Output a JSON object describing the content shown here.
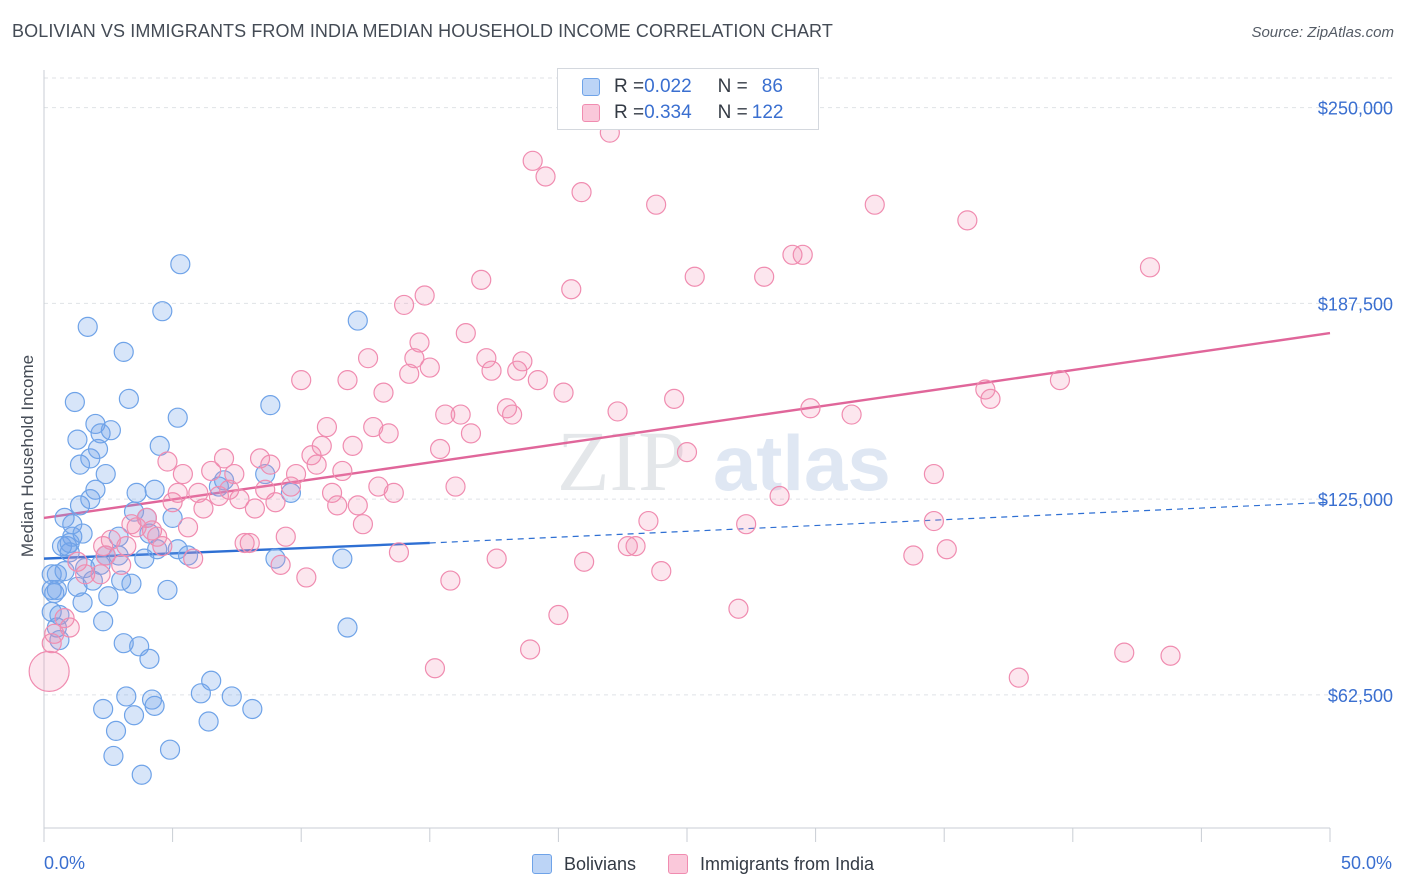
{
  "header": {
    "title": "BOLIVIAN VS IMMIGRANTS FROM INDIA MEDIAN HOUSEHOLD INCOME CORRELATION CHART",
    "source": "Source: ZipAtlas.com"
  },
  "watermark": {
    "zip": "ZIP",
    "atlas": "atlas"
  },
  "stats": {
    "rows": [
      {
        "r_label": "R = ",
        "r_value": "0.022",
        "n_label": "N = ",
        "n_value": "86",
        "color": "#6fa3e8"
      },
      {
        "r_label": "R = ",
        "r_value": "0.334",
        "n_label": "N = ",
        "n_value": "122",
        "color": "#f08cb0"
      }
    ]
  },
  "legend": {
    "items": [
      {
        "label": "Bolivians",
        "color": "#6fa3e8"
      },
      {
        "label": "Immigrants from India",
        "color": "#f08cb0"
      }
    ]
  },
  "chart_data": {
    "type": "scatter",
    "title": "BOLIVIAN VS IMMIGRANTS FROM INDIA MEDIAN HOUSEHOLD INCOME CORRELATION CHART",
    "xlabel": "",
    "ylabel": "Median Household Income",
    "x_unit": "%",
    "xlim": [
      0,
      50
    ],
    "ylim": [
      20000,
      262000
    ],
    "x_tick_labels": [
      "0.0%",
      "50.0%"
    ],
    "y_ticks": [
      62500,
      125000,
      187500,
      250000
    ],
    "y_tick_labels": [
      "$62,500",
      "$125,000",
      "$187,500",
      "$250,000"
    ],
    "grid": "horizontal dashed",
    "legend_position": "bottom",
    "series": [
      {
        "name": "Bolivians",
        "color": "#6fa3e8",
        "trend": {
          "x0": 0,
          "y0": 106000,
          "x1": 15,
          "y1": 111000,
          "extend_to": 50,
          "extend_y": 124000
        },
        "points": [
          [
            0.3,
            101000
          ],
          [
            0.3,
            96000
          ],
          [
            0.3,
            89000
          ],
          [
            0.4,
            95000
          ],
          [
            0.5,
            101000
          ],
          [
            0.5,
            96000
          ],
          [
            0.5,
            84000
          ],
          [
            0.6,
            80000
          ],
          [
            0.7,
            110000
          ],
          [
            0.8,
            102000
          ],
          [
            0.8,
            119000
          ],
          [
            0.9,
            110000
          ],
          [
            1.0,
            108000
          ],
          [
            1.1,
            113000
          ],
          [
            1.1,
            117000
          ],
          [
            1.2,
            156000
          ],
          [
            1.3,
            144000
          ],
          [
            1.4,
            123000
          ],
          [
            1.4,
            136000
          ],
          [
            1.5,
            114000
          ],
          [
            1.5,
            92000
          ],
          [
            1.6,
            103000
          ],
          [
            1.7,
            180000
          ],
          [
            1.8,
            138000
          ],
          [
            1.8,
            125000
          ],
          [
            1.9,
            99000
          ],
          [
            2.0,
            128000
          ],
          [
            2.0,
            149000
          ],
          [
            2.1,
            141000
          ],
          [
            2.2,
            146000
          ],
          [
            2.3,
            58000
          ],
          [
            2.3,
            86000
          ],
          [
            2.4,
            133000
          ],
          [
            2.4,
            107000
          ],
          [
            2.5,
            94000
          ],
          [
            2.6,
            147000
          ],
          [
            2.7,
            43000
          ],
          [
            2.8,
            51000
          ],
          [
            2.9,
            113000
          ],
          [
            2.9,
            107000
          ],
          [
            3.0,
            99000
          ],
          [
            3.1,
            172000
          ],
          [
            3.1,
            79000
          ],
          [
            3.2,
            62000
          ],
          [
            3.3,
            157000
          ],
          [
            3.4,
            98000
          ],
          [
            3.5,
            121000
          ],
          [
            3.5,
            56000
          ],
          [
            3.7,
            78000
          ],
          [
            3.8,
            37000
          ],
          [
            3.9,
            106000
          ],
          [
            4.0,
            119000
          ],
          [
            4.1,
            114000
          ],
          [
            4.1,
            74000
          ],
          [
            4.2,
            61000
          ],
          [
            4.3,
            59000
          ],
          [
            4.3,
            128000
          ],
          [
            4.4,
            109000
          ],
          [
            4.5,
            142000
          ],
          [
            4.6,
            185000
          ],
          [
            4.8,
            96000
          ],
          [
            4.9,
            45000
          ],
          [
            5.2,
            151000
          ],
          [
            5.2,
            109000
          ],
          [
            5.3,
            200000
          ],
          [
            5.6,
            107000
          ],
          [
            6.1,
            63000
          ],
          [
            6.4,
            54000
          ],
          [
            6.5,
            67000
          ],
          [
            6.8,
            129000
          ],
          [
            7.0,
            131000
          ],
          [
            7.3,
            62000
          ],
          [
            8.1,
            58000
          ],
          [
            8.6,
            133000
          ],
          [
            8.8,
            155000
          ],
          [
            9.0,
            106000
          ],
          [
            9.6,
            127000
          ],
          [
            11.6,
            106000
          ],
          [
            11.8,
            84000
          ],
          [
            12.2,
            182000
          ],
          [
            0.6,
            88000
          ],
          [
            1.0,
            111000
          ],
          [
            1.3,
            97000
          ],
          [
            2.2,
            104000
          ],
          [
            3.6,
            127000
          ],
          [
            5.0,
            119000
          ]
        ]
      },
      {
        "name": "Immigrants from India",
        "color": "#f08cb0",
        "trend": {
          "x0": 0,
          "y0": 119000,
          "x1": 50,
          "y1": 178000
        },
        "points": [
          [
            0.2,
            70000
          ],
          [
            0.3,
            79000
          ],
          [
            0.4,
            82000
          ],
          [
            0.8,
            87000
          ],
          [
            1.0,
            84000
          ],
          [
            1.3,
            105000
          ],
          [
            1.6,
            101000
          ],
          [
            2.2,
            101000
          ],
          [
            2.3,
            110000
          ],
          [
            2.4,
            107000
          ],
          [
            2.6,
            112000
          ],
          [
            3.0,
            104000
          ],
          [
            3.2,
            110000
          ],
          [
            3.4,
            117000
          ],
          [
            3.6,
            116000
          ],
          [
            4.0,
            119000
          ],
          [
            4.2,
            115000
          ],
          [
            4.4,
            113000
          ],
          [
            4.6,
            110000
          ],
          [
            4.8,
            137000
          ],
          [
            5.0,
            124000
          ],
          [
            5.2,
            127000
          ],
          [
            5.4,
            133000
          ],
          [
            5.6,
            116000
          ],
          [
            5.8,
            106000
          ],
          [
            6.0,
            127000
          ],
          [
            6.2,
            122000
          ],
          [
            6.5,
            134000
          ],
          [
            6.8,
            126000
          ],
          [
            7.0,
            138000
          ],
          [
            7.2,
            128000
          ],
          [
            7.4,
            133000
          ],
          [
            7.6,
            125000
          ],
          [
            7.8,
            111000
          ],
          [
            8.0,
            111000
          ],
          [
            8.2,
            122000
          ],
          [
            8.4,
            138000
          ],
          [
            8.6,
            128000
          ],
          [
            8.8,
            136000
          ],
          [
            9.0,
            124000
          ],
          [
            9.2,
            104000
          ],
          [
            9.4,
            113000
          ],
          [
            9.6,
            129000
          ],
          [
            9.8,
            133000
          ],
          [
            10.0,
            163000
          ],
          [
            10.2,
            100000
          ],
          [
            10.4,
            139000
          ],
          [
            10.6,
            136000
          ],
          [
            10.8,
            142000
          ],
          [
            11.0,
            148000
          ],
          [
            11.2,
            127000
          ],
          [
            11.4,
            123000
          ],
          [
            11.6,
            134000
          ],
          [
            11.8,
            163000
          ],
          [
            12.0,
            142000
          ],
          [
            12.2,
            123000
          ],
          [
            12.4,
            117000
          ],
          [
            12.6,
            170000
          ],
          [
            12.8,
            148000
          ],
          [
            13.0,
            129000
          ],
          [
            13.2,
            159000
          ],
          [
            13.4,
            146000
          ],
          [
            13.6,
            127000
          ],
          [
            13.8,
            108000
          ],
          [
            14.0,
            187000
          ],
          [
            14.2,
            165000
          ],
          [
            14.4,
            170000
          ],
          [
            14.6,
            175000
          ],
          [
            14.8,
            190000
          ],
          [
            15.0,
            167000
          ],
          [
            15.2,
            71000
          ],
          [
            15.4,
            141000
          ],
          [
            15.6,
            152000
          ],
          [
            15.8,
            99000
          ],
          [
            16.0,
            129000
          ],
          [
            16.2,
            152000
          ],
          [
            16.4,
            178000
          ],
          [
            16.6,
            146000
          ],
          [
            17.0,
            195000
          ],
          [
            17.2,
            170000
          ],
          [
            17.4,
            166000
          ],
          [
            17.6,
            106000
          ],
          [
            18.0,
            154000
          ],
          [
            18.2,
            152000
          ],
          [
            18.4,
            166000
          ],
          [
            18.6,
            169000
          ],
          [
            18.9,
            77000
          ],
          [
            19.0,
            233000
          ],
          [
            19.2,
            163000
          ],
          [
            19.5,
            228000
          ],
          [
            20.0,
            88000
          ],
          [
            20.2,
            159000
          ],
          [
            20.5,
            192000
          ],
          [
            20.9,
            223000
          ],
          [
            21.0,
            105000
          ],
          [
            22.0,
            242000
          ],
          [
            22.3,
            153000
          ],
          [
            22.7,
            110000
          ],
          [
            23.0,
            110000
          ],
          [
            23.5,
            118000
          ],
          [
            23.8,
            219000
          ],
          [
            24.0,
            102000
          ],
          [
            24.5,
            157000
          ],
          [
            25.0,
            140000
          ],
          [
            25.3,
            196000
          ],
          [
            27.0,
            90000
          ],
          [
            27.3,
            117000
          ],
          [
            28.0,
            196000
          ],
          [
            28.6,
            126000
          ],
          [
            29.1,
            203000
          ],
          [
            29.5,
            203000
          ],
          [
            29.8,
            154000
          ],
          [
            31.4,
            152000
          ],
          [
            32.3,
            219000
          ],
          [
            33.8,
            107000
          ],
          [
            34.6,
            133000
          ],
          [
            34.6,
            118000
          ],
          [
            35.1,
            109000
          ],
          [
            35.9,
            214000
          ],
          [
            36.6,
            160000
          ],
          [
            36.8,
            157000
          ],
          [
            37.9,
            68000
          ],
          [
            39.5,
            163000
          ],
          [
            42.0,
            76000
          ],
          [
            43.0,
            199000
          ],
          [
            43.8,
            75000
          ]
        ]
      }
    ]
  }
}
